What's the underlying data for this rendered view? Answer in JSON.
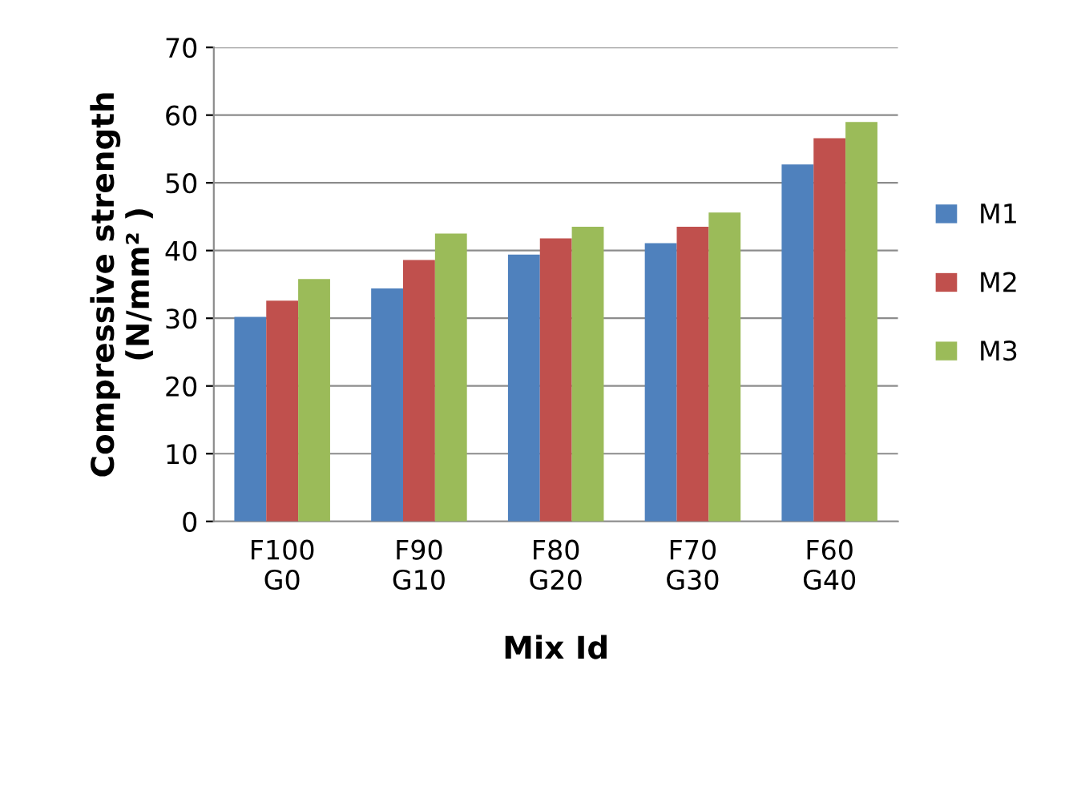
{
  "chart_data": {
    "type": "bar",
    "xlabel": "Mix Id",
    "ylabel": "Compressive strength\n(N/mm² )",
    "categories": [
      "F100\nG0",
      "F90\nG10",
      "F80\nG20",
      "F70\nG30",
      "F60\nG40"
    ],
    "series": [
      {
        "name": "M1",
        "color": "#4f81bd",
        "values": [
          30.2,
          34.4,
          39.4,
          41.1,
          52.7
        ]
      },
      {
        "name": "M2",
        "color": "#c0504d",
        "values": [
          32.6,
          38.6,
          41.8,
          43.5,
          56.6
        ]
      },
      {
        "name": "M3",
        "color": "#9bbb59",
        "values": [
          35.8,
          42.5,
          43.5,
          45.6,
          59.0
        ]
      }
    ],
    "ylim": [
      0,
      70
    ],
    "yticks": [
      0,
      10,
      20,
      30,
      40,
      50,
      60,
      70
    ],
    "grid": "y",
    "legend": "right"
  }
}
